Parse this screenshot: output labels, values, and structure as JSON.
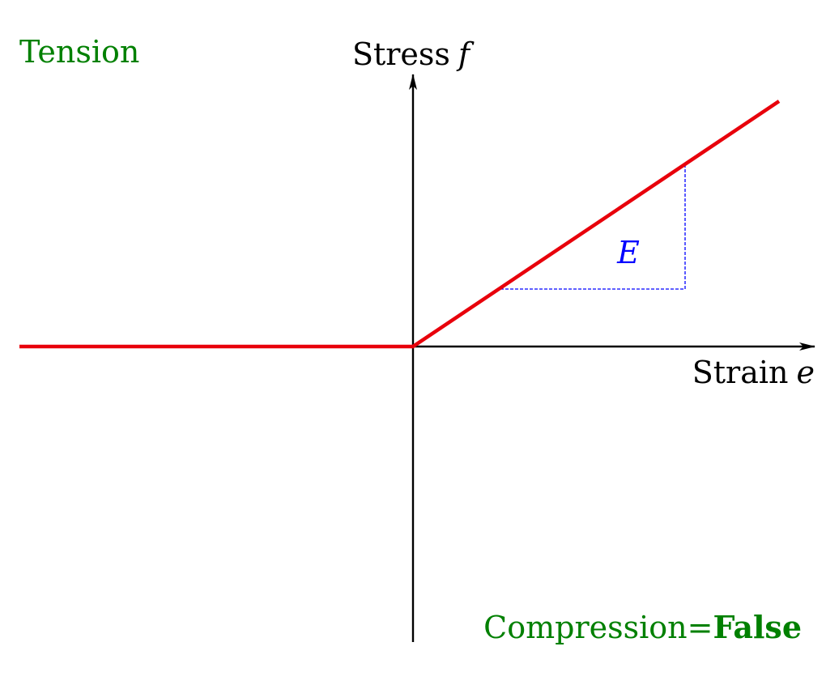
{
  "labels": {
    "tension": "Tension",
    "stress": "Stress",
    "stress_symbol": "f",
    "strain": "Strain",
    "strain_symbol": "e",
    "modulus": "E",
    "compression_prefix": "Compression=",
    "compression_value": "False"
  },
  "colors": {
    "response_curve": "#e8000b",
    "slope_triangle": "#0000ff",
    "note_text": "#008000",
    "axes": "#000000"
  }
}
